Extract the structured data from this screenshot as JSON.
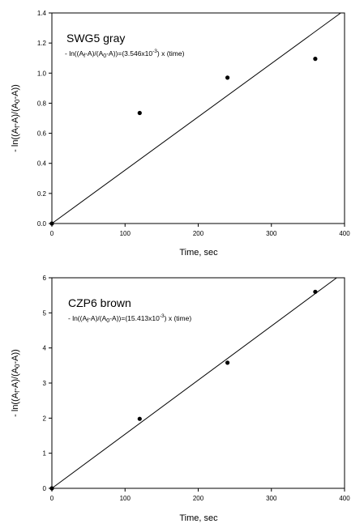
{
  "chart_data": [
    {
      "type": "scatter",
      "title": "SWG5 gray",
      "annotation": {
        "prefix": "- ln((A",
        "sub1": "f",
        "mid1": "-A)/(A",
        "sub2": "0",
        "mid2": "-A))=(3.546x10",
        "sup": "-3",
        "suffix": ") x (time)"
      },
      "xlabel": "Time, sec",
      "ylabel": {
        "prefix": "- ln((A",
        "sub1": "f",
        "mid1": "-A)/(A",
        "sub2": "0",
        "mid2": "-A))"
      },
      "xlim": [
        0,
        400
      ],
      "ylim": [
        0,
        1.4
      ],
      "xticks": [
        "0",
        "100",
        "200",
        "300",
        "400"
      ],
      "yticks": [
        "0.0",
        "0.2",
        "0.4",
        "0.6",
        "0.8",
        "1.0",
        "1.2",
        "1.4"
      ],
      "grid": false,
      "series": [
        {
          "x": [
            0,
            120,
            240,
            360
          ],
          "y": [
            0,
            0.735,
            0.97,
            1.095
          ]
        }
      ],
      "fit_line": {
        "slope": 0.003546
      }
    },
    {
      "type": "scatter",
      "title": "CZP6 brown",
      "annotation": {
        "prefix": "- ln((A",
        "sub1": "f",
        "mid1": "-A)/(A",
        "sub2": "0",
        "mid2": "-A))=(15.413x10",
        "sup": "-3",
        "suffix": ") x (time)"
      },
      "xlabel": "Time, sec",
      "ylabel": {
        "prefix": "- ln((A",
        "sub1": "f",
        "mid1": "-A)/(A",
        "sub2": "0",
        "mid2": "-A))"
      },
      "xlim": [
        0,
        400
      ],
      "ylim": [
        0,
        6
      ],
      "xticks": [
        "0",
        "100",
        "200",
        "300",
        "400"
      ],
      "yticks": [
        "0",
        "1",
        "2",
        "3",
        "4",
        "5",
        "6"
      ],
      "grid": false,
      "series": [
        {
          "x": [
            0,
            120,
            240,
            360
          ],
          "y": [
            0,
            1.98,
            3.58,
            5.6
          ]
        }
      ],
      "fit_line": {
        "slope": 0.015413
      }
    }
  ]
}
